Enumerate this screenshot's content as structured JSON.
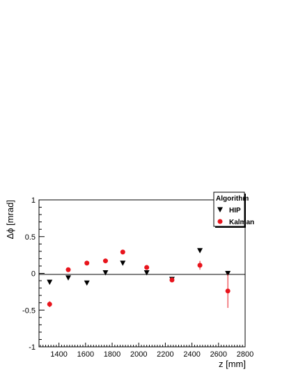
{
  "chart_data": {
    "type": "scatter",
    "title": "",
    "xlabel": "z [mm]",
    "ylabel": "Δϕ [mrad]",
    "xlim": [
      1250,
      2800
    ],
    "ylim": [
      -1,
      1
    ],
    "x_ticks": [
      1400,
      1600,
      1800,
      2000,
      2200,
      2400,
      2600,
      2800
    ],
    "y_ticks": [
      -1,
      -0.5,
      0,
      0.5,
      1
    ],
    "x_tick_labels": [
      "1400",
      "1600",
      "1800",
      "2000",
      "2200",
      "2400",
      "2600",
      "2800"
    ],
    "y_tick_labels": [
      "-1",
      "-0.5",
      "0",
      "0.5",
      "1"
    ],
    "zero_line": true,
    "grid": false,
    "legend": {
      "title": "Algorithm",
      "placement": "top-right"
    },
    "series": [
      {
        "name": "HIP",
        "marker": "triangle-down",
        "color": "#000000",
        "points": [
          {
            "x": 1330,
            "y": -0.12
          },
          {
            "x": 1470,
            "y": -0.06
          },
          {
            "x": 1610,
            "y": -0.13
          },
          {
            "x": 1750,
            "y": 0.01
          },
          {
            "x": 1880,
            "y": 0.14
          },
          {
            "x": 2060,
            "y": 0.01
          },
          {
            "x": 2250,
            "y": -0.08
          },
          {
            "x": 2460,
            "y": 0.31
          },
          {
            "x": 2670,
            "y": 0.0
          }
        ]
      },
      {
        "name": "Kalman",
        "marker": "circle",
        "color": "#e8141c",
        "points": [
          {
            "x": 1330,
            "y": -0.42,
            "err": 0.04
          },
          {
            "x": 1470,
            "y": 0.05,
            "err": 0.03
          },
          {
            "x": 1610,
            "y": 0.14,
            "err": 0.03
          },
          {
            "x": 1750,
            "y": 0.17,
            "err": 0.03
          },
          {
            "x": 1880,
            "y": 0.29,
            "err": 0.03
          },
          {
            "x": 2060,
            "y": 0.08,
            "err": 0.03
          },
          {
            "x": 2250,
            "y": -0.09,
            "err": 0.03
          },
          {
            "x": 2460,
            "y": 0.11,
            "err": 0.06
          },
          {
            "x": 2670,
            "y": -0.24,
            "err": 0.23
          }
        ]
      }
    ]
  }
}
